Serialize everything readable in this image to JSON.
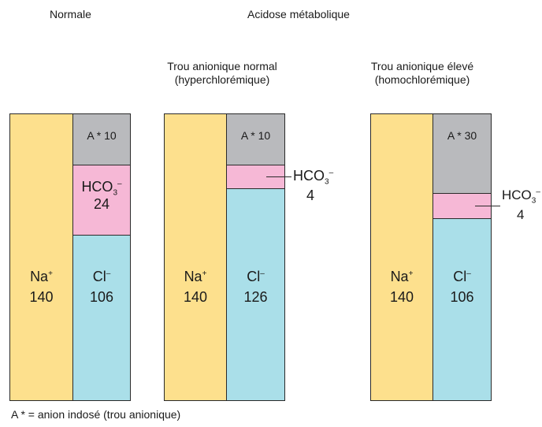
{
  "headings": {
    "normal": "Normale",
    "acidosis": "Acidose métabolique",
    "normal_gap_line1": "Trou anionique normal",
    "normal_gap_line2": "(hyperchlorémique)",
    "high_gap_line1": "Trou anionique élevé",
    "high_gap_line2": "(homochlorémique)"
  },
  "columns": [
    {
      "na": {
        "label": "Na",
        "sup": "+",
        "value": "140"
      },
      "a": {
        "label": "A * 10"
      },
      "hco3": {
        "label": "HCO",
        "sub": "3",
        "sup": "–",
        "value": "24"
      },
      "cl": {
        "label": "Cl",
        "sup": "–",
        "value": "106"
      }
    },
    {
      "na": {
        "label": "Na",
        "sup": "+",
        "value": "140"
      },
      "a": {
        "label": "A * 10"
      },
      "hco3": {
        "label": "HCO",
        "sub": "3",
        "sup": "–",
        "value": "4"
      },
      "cl": {
        "label": "Cl",
        "sup": "–",
        "value": "126"
      }
    },
    {
      "na": {
        "label": "Na",
        "sup": "+",
        "value": "140"
      },
      "a": {
        "label": "A * 30"
      },
      "hco3": {
        "label": "HCO",
        "sub": "3",
        "sup": "–",
        "value": "4"
      },
      "cl": {
        "label": "Cl",
        "sup": "–",
        "value": "106"
      }
    }
  ],
  "footnote": "A * = anion indosé (trou anionique)",
  "colors": {
    "na": "#fde08d",
    "a": "#b9babd",
    "hco3": "#f6b8d6",
    "cl": "#aadfe9"
  }
}
